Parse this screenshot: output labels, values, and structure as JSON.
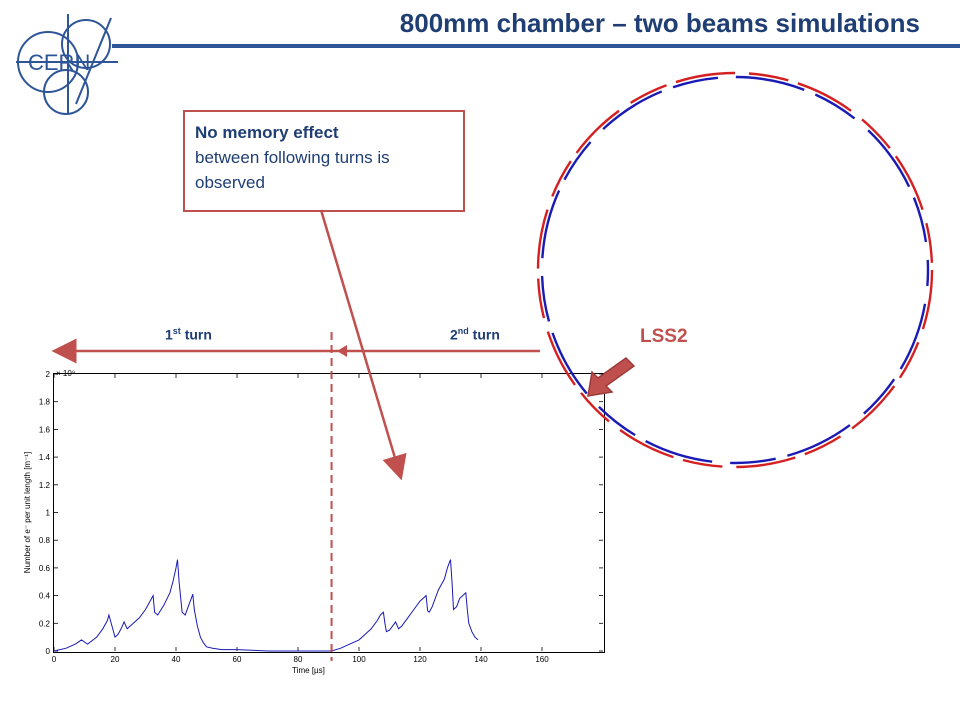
{
  "header": {
    "title": "800mm chamber – two beams simulations",
    "logo_text": "CERN",
    "accent_color": "#2e5597"
  },
  "callout": {
    "bold_text": "No memory effect",
    "text": "between following turns is observed",
    "border_color": "#c0504d"
  },
  "labels": {
    "turn1": "1st turn",
    "turn2": "2nd turn",
    "lss2": "LSS2"
  },
  "ring": {
    "beam1_color": "#d42020",
    "beam2_color": "#1a1ab5"
  },
  "chart_data": {
    "type": "line",
    "xlabel": "Time [µs]",
    "ylabel": "Number of e⁻ per unit length [m⁻¹]",
    "y_multiplier": "× 10⁹",
    "xlim": [
      0,
      180
    ],
    "ylim": [
      0,
      2
    ],
    "xticks": [
      0,
      20,
      40,
      60,
      80,
      100,
      120,
      140,
      160
    ],
    "yticks": [
      0,
      0.2,
      0.4,
      0.6,
      0.8,
      1,
      1.2,
      1.4,
      1.6,
      1.8,
      2
    ],
    "ytick_labels": [
      "0",
      "0.2",
      "0.4",
      "0.6",
      "0.8",
      "1",
      "1.2",
      "1.4",
      "1.6",
      "1.8",
      "2"
    ],
    "series_color": "#1a1ab5",
    "divider_x": 91,
    "x": [
      0,
      4,
      7,
      9,
      11,
      14,
      16,
      17.5,
      18,
      19,
      20,
      21,
      22,
      23,
      24,
      26,
      28,
      30,
      31,
      32,
      32.5,
      33,
      34,
      36,
      38,
      39,
      40,
      40.5,
      41,
      42,
      43,
      44,
      45,
      45.5,
      46,
      47,
      48,
      49,
      50,
      52,
      55,
      60,
      70,
      80,
      88,
      91,
      94,
      97,
      100,
      102,
      104,
      106,
      107,
      108,
      108.5,
      109,
      110,
      111,
      112,
      113,
      114,
      116,
      118,
      120,
      121,
      122,
      122.5,
      123,
      124,
      126,
      128,
      129,
      130,
      130.5,
      131,
      132,
      133,
      134,
      135,
      135.5,
      136,
      137,
      138,
      139
    ],
    "y": [
      0,
      0.02,
      0.05,
      0.08,
      0.05,
      0.1,
      0.16,
      0.22,
      0.26,
      0.18,
      0.1,
      0.12,
      0.16,
      0.21,
      0.16,
      0.2,
      0.24,
      0.3,
      0.34,
      0.38,
      0.4,
      0.28,
      0.26,
      0.33,
      0.42,
      0.5,
      0.6,
      0.66,
      0.5,
      0.28,
      0.26,
      0.32,
      0.38,
      0.41,
      0.3,
      0.18,
      0.1,
      0.06,
      0.03,
      0.02,
      0.01,
      0.01,
      0.0,
      0.0,
      0.0,
      0.0,
      0.02,
      0.05,
      0.08,
      0.12,
      0.16,
      0.22,
      0.26,
      0.28,
      0.2,
      0.14,
      0.15,
      0.18,
      0.21,
      0.16,
      0.18,
      0.24,
      0.3,
      0.36,
      0.38,
      0.4,
      0.29,
      0.28,
      0.32,
      0.44,
      0.52,
      0.6,
      0.66,
      0.5,
      0.3,
      0.32,
      0.38,
      0.4,
      0.42,
      0.3,
      0.2,
      0.14,
      0.1,
      0.08
    ]
  }
}
